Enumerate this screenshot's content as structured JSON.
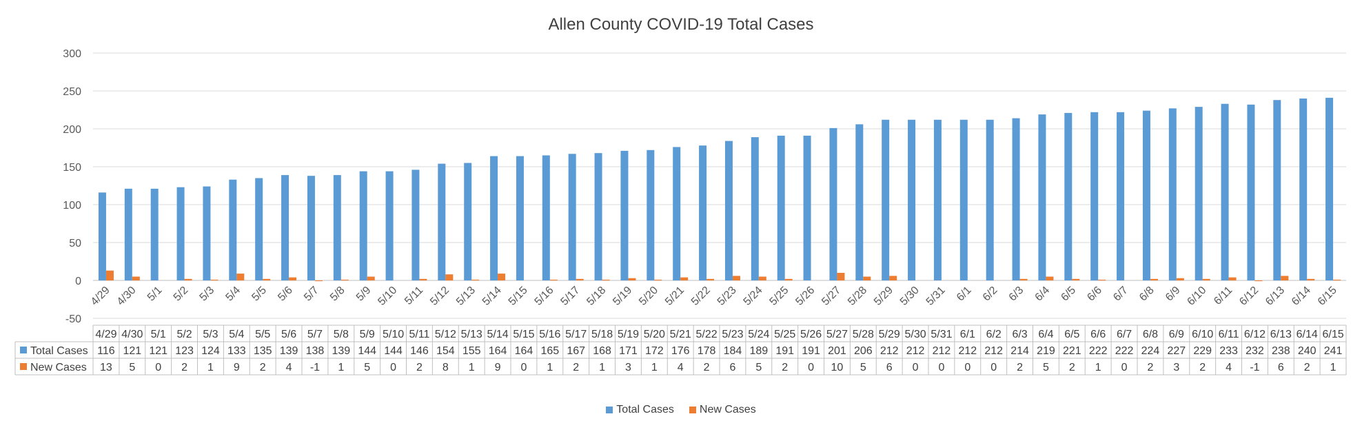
{
  "chart_data": {
    "type": "bar",
    "title": "Allen County COVID-19 Total Cases",
    "xlabel": "",
    "ylabel": "",
    "ylim": [
      -50,
      300
    ],
    "yticks": [
      -50,
      0,
      50,
      100,
      150,
      200,
      250,
      300
    ],
    "grid": true,
    "legend_position": "bottom",
    "data_table": true,
    "categories": [
      "4/29",
      "4/30",
      "5/1",
      "5/2",
      "5/3",
      "5/4",
      "5/5",
      "5/6",
      "5/7",
      "5/8",
      "5/9",
      "5/10",
      "5/11",
      "5/12",
      "5/13",
      "5/14",
      "5/15",
      "5/16",
      "5/17",
      "5/18",
      "5/19",
      "5/20",
      "5/21",
      "5/22",
      "5/23",
      "5/24",
      "5/25",
      "5/26",
      "5/27",
      "5/28",
      "5/29",
      "5/30",
      "5/31",
      "6/1",
      "6/2",
      "6/3",
      "6/4",
      "6/5",
      "6/6",
      "6/7",
      "6/8",
      "6/9",
      "6/10",
      "6/11",
      "6/12",
      "6/13",
      "6/14",
      "6/15"
    ],
    "series": [
      {
        "name": "Total Cases",
        "color": "#5b9bd5",
        "values": [
          116,
          121,
          121,
          123,
          124,
          133,
          135,
          139,
          138,
          139,
          144,
          144,
          146,
          154,
          155,
          164,
          164,
          165,
          167,
          168,
          171,
          172,
          176,
          178,
          184,
          189,
          191,
          191,
          201,
          206,
          212,
          212,
          212,
          212,
          212,
          214,
          219,
          221,
          222,
          222,
          224,
          227,
          229,
          233,
          232,
          238,
          240,
          241
        ]
      },
      {
        "name": "New Cases",
        "color": "#ed7d31",
        "values": [
          13,
          5,
          0,
          2,
          1,
          9,
          2,
          4,
          -1,
          1,
          5,
          0,
          2,
          8,
          1,
          9,
          0,
          1,
          2,
          1,
          3,
          1,
          4,
          2,
          6,
          5,
          2,
          0,
          10,
          5,
          6,
          0,
          0,
          0,
          0,
          2,
          5,
          2,
          1,
          0,
          2,
          3,
          2,
          4,
          -1,
          6,
          2,
          1
        ]
      }
    ]
  }
}
